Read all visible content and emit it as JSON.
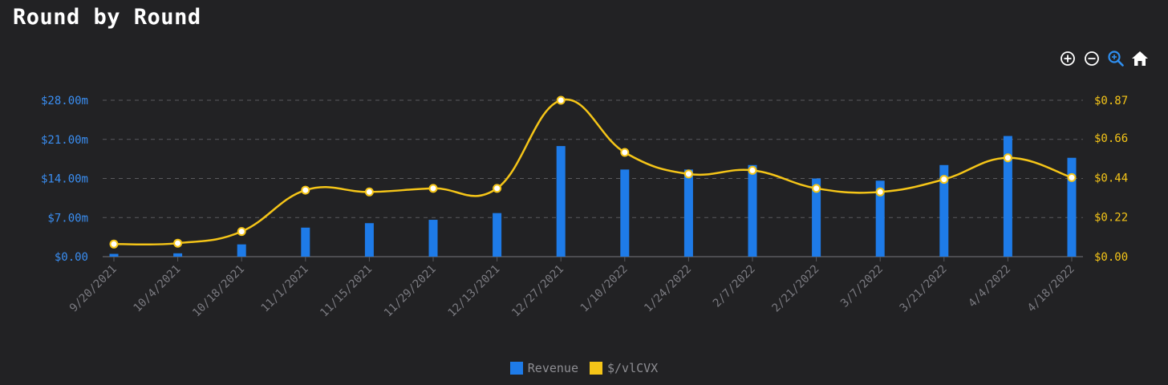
{
  "title": "Round by Round",
  "toolbar": {
    "icons": [
      "zoom-in-icon",
      "zoom-out-icon",
      "zoom-select-icon",
      "home-reset-icon"
    ]
  },
  "colors": {
    "background": "#222224",
    "revenue": "#1e7be8",
    "price": "#f5c518",
    "left_axis": "#3a8ef2",
    "right_axis": "#f5c518",
    "grid": "#5a5a5e",
    "xtick": "#7a7a80"
  },
  "legend": {
    "revenue_label": "Revenue",
    "price_label": "$/vlCVX"
  },
  "chart_data": {
    "type": "bar",
    "title": "Round by Round",
    "categories": [
      "9/20/2021",
      "10/4/2021",
      "10/18/2021",
      "11/1/2021",
      "11/15/2021",
      "11/29/2021",
      "12/13/2021",
      "12/27/2021",
      "1/10/2022",
      "1/24/2022",
      "2/7/2022",
      "2/21/2022",
      "3/7/2022",
      "3/21/2022",
      "4/4/2022",
      "4/18/2022"
    ],
    "series": [
      {
        "name": "Revenue",
        "type": "bar",
        "axis": "left",
        "unit": "$m",
        "values": [
          0.5,
          0.6,
          2.2,
          5.2,
          6.0,
          6.6,
          7.8,
          19.8,
          15.6,
          15.6,
          16.4,
          14.0,
          13.6,
          16.4,
          21.6,
          17.7
        ]
      },
      {
        "name": "$/vlCVX",
        "type": "line",
        "axis": "right",
        "unit": "$",
        "values": [
          0.07,
          0.075,
          0.14,
          0.37,
          0.36,
          0.38,
          0.38,
          0.87,
          0.58,
          0.46,
          0.48,
          0.38,
          0.36,
          0.43,
          0.55,
          0.44
        ]
      }
    ],
    "left_axis": {
      "ticks": [
        "$0.00",
        "$7.00m",
        "$14.00m",
        "$21.00m",
        "$28.00m"
      ],
      "tick_values": [
        0,
        7,
        14,
        21,
        28
      ],
      "ylim": [
        0,
        28
      ]
    },
    "right_axis": {
      "ticks": [
        "$0.00",
        "$0.22",
        "$0.44",
        "$0.66",
        "$0.87"
      ],
      "tick_values": [
        0,
        0.22,
        0.44,
        0.66,
        0.87
      ],
      "ylim": [
        0,
        0.87
      ]
    },
    "grid": true,
    "grid_style": "dashed",
    "legend_position": "bottom-center"
  }
}
